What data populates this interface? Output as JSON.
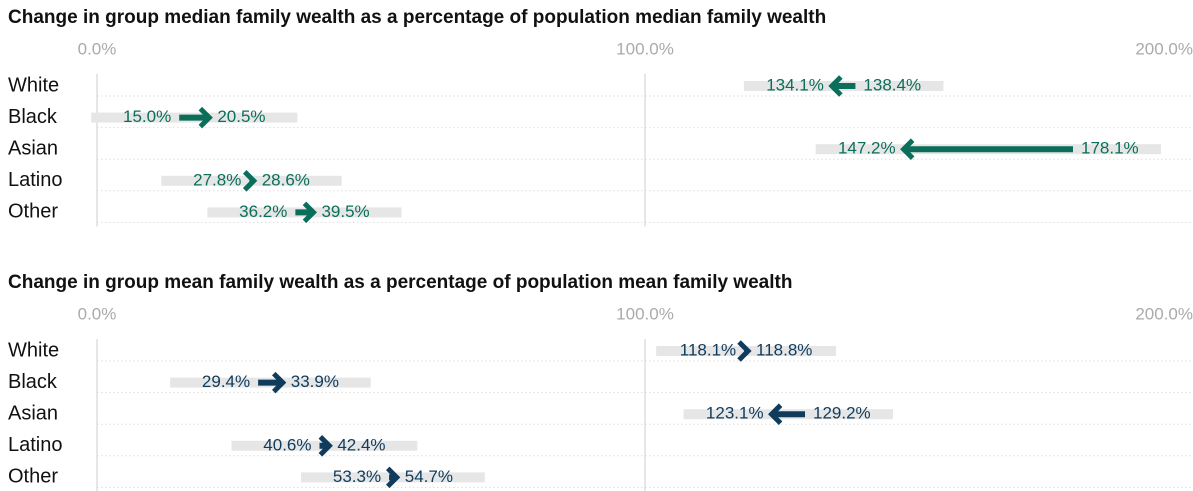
{
  "chart_data": [
    {
      "type": "arrow",
      "title": "Change in group median family wealth as a percentage of population median family wealth",
      "categories": [
        "White",
        "Black",
        "Asian",
        "Latino",
        "Other"
      ],
      "series": [
        {
          "values": [
            138.4,
            15.0,
            178.1,
            27.8,
            36.2
          ],
          "value_labels": [
            "138.4%",
            "15.0%",
            "178.1%",
            "27.8%",
            "36.2%"
          ]
        },
        {
          "values": [
            134.1,
            20.5,
            147.2,
            28.6,
            39.5
          ],
          "value_labels": [
            "134.1%",
            "20.5%",
            "147.2%",
            "28.6%",
            "39.5%"
          ]
        }
      ],
      "color": "#0b6e5a",
      "xlim": [
        0,
        200
      ],
      "xticks": [
        {
          "value": 0,
          "label": "0.0%"
        },
        {
          "value": 100,
          "label": "100.0%"
        },
        {
          "value": 200,
          "label": "200.0%"
        }
      ],
      "grid": true
    },
    {
      "type": "arrow",
      "title": "Change in group mean family wealth as a percentage of population mean family wealth",
      "categories": [
        "White",
        "Black",
        "Asian",
        "Latino",
        "Other"
      ],
      "series": [
        {
          "values": [
            118.1,
            29.4,
            129.2,
            40.6,
            53.3
          ],
          "value_labels": [
            "118.1%",
            "29.4%",
            "129.2%",
            "40.6%",
            "53.3%"
          ]
        },
        {
          "values": [
            118.8,
            33.9,
            123.1,
            42.4,
            54.7
          ],
          "value_labels": [
            "118.8%",
            "33.9%",
            "123.1%",
            "42.4%",
            "54.7%"
          ]
        }
      ],
      "color": "#0f3b5c",
      "xlim": [
        0,
        200
      ],
      "xticks": [
        {
          "value": 0,
          "label": "0.0%"
        },
        {
          "value": 100,
          "label": "100.0%"
        },
        {
          "value": 200,
          "label": "200.0%"
        }
      ],
      "grid": true
    }
  ]
}
